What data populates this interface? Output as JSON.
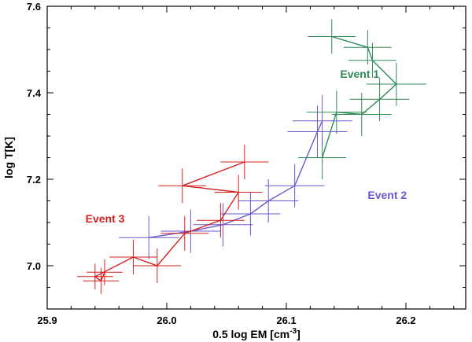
{
  "chart_data": {
    "type": "scatter",
    "xlabel": "0.5 log EM [cm",
    "xlabel_sup": "-3",
    "xlabel_close": "]",
    "ylabel": "log T[K]",
    "xlim": [
      25.9,
      26.25
    ],
    "ylim": [
      6.9,
      7.6
    ],
    "xticks": [
      25.9,
      26.0,
      26.1,
      26.2
    ],
    "xtick_labels": [
      "25.9",
      "26.0",
      "26.1",
      "26.2"
    ],
    "yticks": [
      7.0,
      7.2,
      7.4,
      7.6
    ],
    "ytick_labels": [
      "7.0",
      "7.2",
      "7.4",
      "7.6"
    ],
    "series": [
      {
        "name": "Event 1",
        "color": "#2e8b57",
        "label_pos": [
          26.145,
          7.435
        ],
        "points": [
          {
            "x": 26.138,
            "y": 7.53,
            "xerr": 0.02,
            "yerr": 0.04
          },
          {
            "x": 26.168,
            "y": 7.505,
            "xerr": 0.02,
            "yerr": 0.04
          },
          {
            "x": 26.172,
            "y": 7.475,
            "xerr": 0.02,
            "yerr": 0.04
          },
          {
            "x": 26.192,
            "y": 7.42,
            "xerr": 0.025,
            "yerr": 0.05
          },
          {
            "x": 26.178,
            "y": 7.385,
            "xerr": 0.025,
            "yerr": 0.05
          },
          {
            "x": 26.163,
            "y": 7.35,
            "xerr": 0.025,
            "yerr": 0.05
          },
          {
            "x": 26.142,
            "y": 7.355,
            "xerr": 0.025,
            "yerr": 0.05
          },
          {
            "x": 26.13,
            "y": 7.25,
            "xerr": 0.02,
            "yerr": 0.05
          }
        ]
      },
      {
        "name": "Event 2",
        "color": "#6a5acd",
        "label_pos": [
          26.168,
          7.155
        ],
        "points": [
          {
            "x": 26.13,
            "y": 7.335,
            "xerr": 0.025,
            "yerr": 0.06
          },
          {
            "x": 26.126,
            "y": 7.31,
            "xerr": 0.025,
            "yerr": 0.06
          },
          {
            "x": 26.107,
            "y": 7.185,
            "xerr": 0.025,
            "yerr": 0.05
          },
          {
            "x": 26.085,
            "y": 7.15,
            "xerr": 0.025,
            "yerr": 0.05
          },
          {
            "x": 26.07,
            "y": 7.12,
            "xerr": 0.025,
            "yerr": 0.05
          },
          {
            "x": 26.047,
            "y": 7.095,
            "xerr": 0.025,
            "yerr": 0.05
          },
          {
            "x": 26.02,
            "y": 7.08,
            "xerr": 0.025,
            "yerr": 0.05
          },
          {
            "x": 25.985,
            "y": 7.065,
            "xerr": 0.025,
            "yerr": 0.05
          }
        ]
      },
      {
        "name": "Event 3",
        "color": "#d42020",
        "label_pos": [
          25.932,
          7.1
        ],
        "points": [
          {
            "x": 26.065,
            "y": 7.24,
            "xerr": 0.02,
            "yerr": 0.04
          },
          {
            "x": 26.013,
            "y": 7.185,
            "xerr": 0.02,
            "yerr": 0.04
          },
          {
            "x": 26.06,
            "y": 7.17,
            "xerr": 0.02,
            "yerr": 0.04
          },
          {
            "x": 26.045,
            "y": 7.105,
            "xerr": 0.02,
            "yerr": 0.04
          },
          {
            "x": 26.015,
            "y": 7.075,
            "xerr": 0.02,
            "yerr": 0.04
          },
          {
            "x": 25.992,
            "y": 7.0,
            "xerr": 0.02,
            "yerr": 0.04
          },
          {
            "x": 25.972,
            "y": 7.02,
            "xerr": 0.02,
            "yerr": 0.04
          },
          {
            "x": 25.94,
            "y": 6.975,
            "xerr": 0.015,
            "yerr": 0.03
          },
          {
            "x": 25.945,
            "y": 6.965,
            "xerr": 0.015,
            "yerr": 0.03
          },
          {
            "x": 25.948,
            "y": 6.985,
            "xerr": 0.015,
            "yerr": 0.03
          }
        ]
      }
    ]
  }
}
